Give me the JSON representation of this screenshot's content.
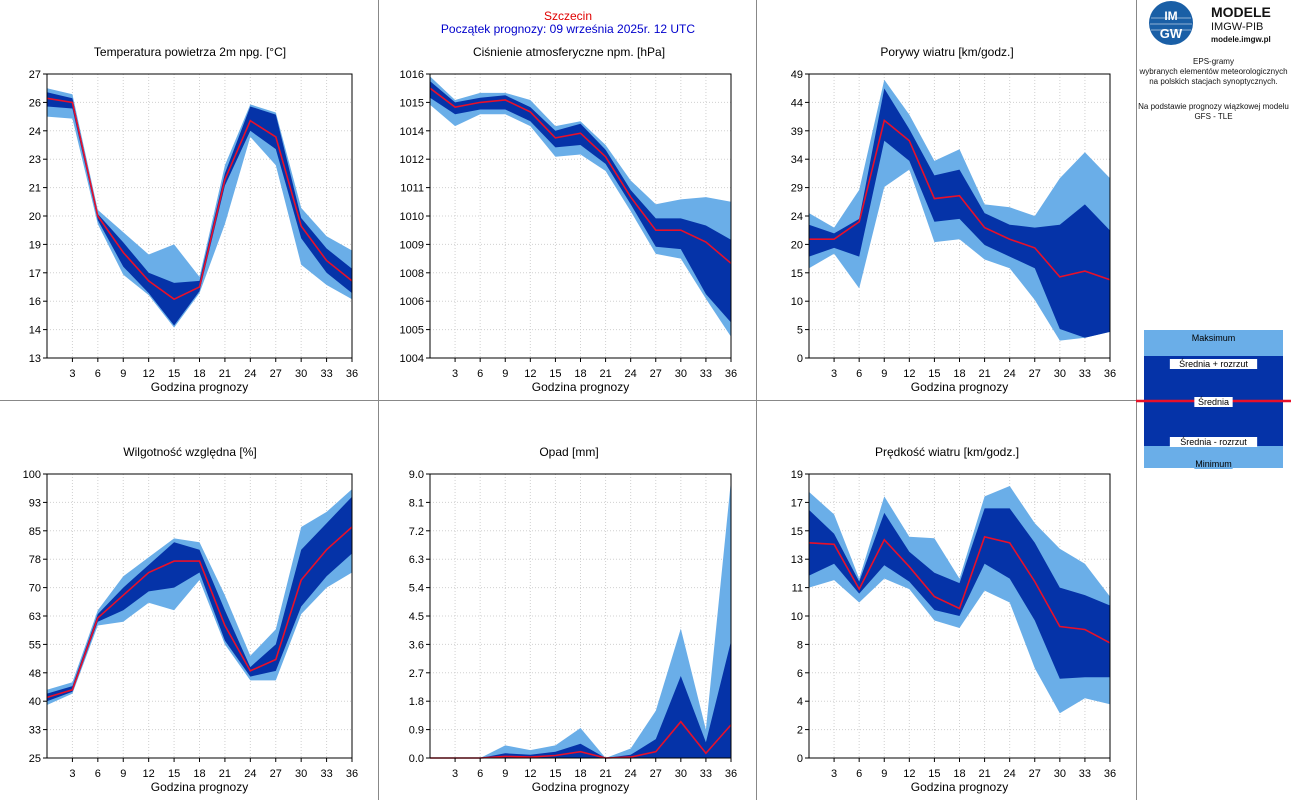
{
  "header": {
    "station": "Szczecin",
    "subtitle": "Początek prognozy: 09 września 2025r. 12 UTC"
  },
  "sidebar": {
    "logo_mark": "IMGW",
    "logo_title": "MODELE",
    "logo_subtitle": "IMGW-PIB",
    "logo_url": "modele.imgw.pl",
    "description": [
      "EPS-gramy",
      "wybranych elementów meteorologicznych",
      "na polskich stacjach  synoptycznych."
    ],
    "model_note": [
      "Na podstawie prognozy wiązkowej modelu",
      "GFS - TLE"
    ],
    "legend": {
      "max": "Maksimum",
      "mean_plus": "Średnia + rozrzut",
      "mean": "Średnia",
      "mean_minus": "Średnia - rozrzut",
      "min": "Minimum"
    }
  },
  "colors": {
    "range_light": "#6aaee8",
    "range_dark": "#0533a8",
    "mean": "#e8102a",
    "grid": "#d0d0d0"
  },
  "chart_data": [
    {
      "type": "area",
      "title": "Temperatura powietrza 2m npg. [°C]",
      "xlabel": "Godzina prognozy",
      "x": [
        0,
        3,
        6,
        9,
        12,
        15,
        18,
        21,
        24,
        27,
        30,
        33,
        36
      ],
      "xticks": [
        "3",
        "6",
        "9",
        "12",
        "15",
        "18",
        "21",
        "24",
        "27",
        "30",
        "33",
        "36"
      ],
      "yticks": [
        "13",
        "14",
        "16",
        "17",
        "19",
        "20",
        "21",
        "23",
        "24",
        "26",
        "27"
      ],
      "ylim": [
        13,
        27
      ],
      "series": {
        "max": [
          26.3,
          26.0,
          20.3,
          19.2,
          18.1,
          18.6,
          17.0,
          22.5,
          25.5,
          25.1,
          20.4,
          19.0,
          18.3
        ],
        "plus": [
          26.1,
          25.8,
          20.1,
          18.7,
          17.2,
          16.7,
          16.8,
          22.1,
          25.4,
          25.0,
          19.9,
          18.4,
          17.4
        ],
        "mean": [
          25.8,
          25.6,
          20.0,
          18.2,
          16.8,
          15.9,
          16.5,
          21.8,
          24.7,
          23.9,
          19.5,
          17.8,
          16.8
        ],
        "minus": [
          25.4,
          25.3,
          19.8,
          17.5,
          16.2,
          14.6,
          16.3,
          21.5,
          24.2,
          23.3,
          18.9,
          17.2,
          16.2
        ],
        "min": [
          24.9,
          24.8,
          19.6,
          17.1,
          16.1,
          14.5,
          16.2,
          19.6,
          23.9,
          22.5,
          17.6,
          16.6,
          15.9
        ]
      }
    },
    {
      "type": "area",
      "title": "Ciśnienie atmosferyczne npm. [hPa]",
      "xlabel": "Godzina prognozy",
      "x": [
        0,
        3,
        6,
        9,
        12,
        15,
        18,
        21,
        24,
        27,
        30,
        33,
        36
      ],
      "xticks": [
        "3",
        "6",
        "9",
        "12",
        "15",
        "18",
        "21",
        "24",
        "27",
        "30",
        "33",
        "36"
      ],
      "yticks": [
        "1004",
        "1005",
        "1006",
        "1008",
        "1009",
        "1010",
        "1011",
        "1012",
        "1014",
        "1015",
        "1016"
      ],
      "ylim": [
        1004,
        1016
      ],
      "series": {
        "max": [
          1015.9,
          1014.9,
          1015.2,
          1015.2,
          1014.9,
          1013.8,
          1014.0,
          1013.0,
          1011.5,
          1010.5,
          1010.7,
          1010.8,
          1010.6
        ],
        "plus": [
          1015.7,
          1014.8,
          1015.0,
          1015.1,
          1014.6,
          1013.6,
          1013.9,
          1012.8,
          1011.1,
          1009.9,
          1009.9,
          1009.6,
          1009.0
        ],
        "mean": [
          1015.4,
          1014.6,
          1014.8,
          1014.9,
          1014.4,
          1013.3,
          1013.5,
          1012.5,
          1010.8,
          1009.4,
          1009.4,
          1008.9,
          1008.0
        ],
        "minus": [
          1015.0,
          1014.3,
          1014.5,
          1014.5,
          1014.0,
          1012.9,
          1013.0,
          1012.2,
          1010.5,
          1008.7,
          1008.6,
          1006.7,
          1005.5
        ],
        "min": [
          1014.7,
          1013.8,
          1014.3,
          1014.3,
          1013.8,
          1012.5,
          1012.6,
          1011.9,
          1010.2,
          1008.4,
          1008.2,
          1006.5,
          1004.9
        ]
      }
    },
    {
      "type": "area",
      "title": "Porywy wiatru [km/godz.]",
      "xlabel": "Godzina prognozy",
      "x": [
        0,
        3,
        6,
        9,
        12,
        15,
        18,
        21,
        24,
        27,
        30,
        33,
        36
      ],
      "xticks": [
        "3",
        "6",
        "9",
        "12",
        "15",
        "18",
        "21",
        "24",
        "27",
        "30",
        "33",
        "36"
      ],
      "yticks": [
        "0",
        "5",
        "10",
        "15",
        "20",
        "24",
        "29",
        "34",
        "39",
        "44",
        "49"
      ],
      "ylim": [
        0,
        49
      ],
      "series": {
        "max": [
          25.0,
          22.5,
          29.0,
          48.0,
          42.0,
          34.0,
          36.0,
          26.5,
          26.0,
          24.5,
          31.0,
          35.5,
          31.0
        ],
        "plus": [
          23.0,
          21.5,
          24.0,
          46.5,
          39.5,
          31.5,
          32.5,
          25.0,
          23.0,
          22.5,
          23.0,
          26.5,
          22.0
        ],
        "mean": [
          20.5,
          20.5,
          23.5,
          41.0,
          37.5,
          27.5,
          28.0,
          22.5,
          20.5,
          19.0,
          14.0,
          15.0,
          13.5
        ],
        "minus": [
          17.5,
          19.0,
          17.5,
          37.5,
          34.0,
          23.5,
          24.0,
          19.5,
          17.5,
          15.5,
          5.0,
          3.5,
          4.5
        ],
        "min": [
          15.5,
          18.0,
          12.0,
          29.5,
          32.5,
          20.0,
          20.5,
          17.0,
          15.5,
          10.0,
          3.0,
          3.5,
          4.5
        ]
      }
    },
    {
      "type": "area",
      "title": "Wilgotność względna [%]",
      "xlabel": "Godzina prognozy",
      "x": [
        0,
        3,
        6,
        9,
        12,
        15,
        18,
        21,
        24,
        27,
        30,
        33,
        36
      ],
      "xticks": [
        "3",
        "6",
        "9",
        "12",
        "15",
        "18",
        "21",
        "24",
        "27",
        "30",
        "33",
        "36"
      ],
      "yticks": [
        "25",
        "33",
        "40",
        "48",
        "55",
        "63",
        "70",
        "78",
        "85",
        "93",
        "100"
      ],
      "ylim": [
        25,
        100
      ],
      "series": {
        "max": [
          43.0,
          45.0,
          64.0,
          73.0,
          78.0,
          83.0,
          82.0,
          68.0,
          52.0,
          59.0,
          86.0,
          90.0,
          96.0
        ],
        "plus": [
          42.0,
          44.0,
          63.0,
          70.0,
          76.0,
          82.0,
          80.0,
          64.0,
          49.0,
          55.0,
          80.0,
          87.0,
          94.0
        ],
        "mean": [
          41.0,
          43.0,
          62.0,
          68.0,
          74.0,
          77.0,
          77.0,
          60.0,
          48.0,
          51.0,
          72.0,
          80.0,
          86.0
        ],
        "minus": [
          40.0,
          42.5,
          61.0,
          64.0,
          69.0,
          70.0,
          74.0,
          56.0,
          46.5,
          48.0,
          65.0,
          73.0,
          79.0
        ],
        "min": [
          39.0,
          42.0,
          60.0,
          61.0,
          66.0,
          64.0,
          72.0,
          55.0,
          45.5,
          45.5,
          63.0,
          70.0,
          74.0
        ]
      }
    },
    {
      "type": "area",
      "title": "Opad [mm]",
      "xlabel": "Godzina prognozy",
      "x": [
        0,
        3,
        6,
        9,
        12,
        15,
        18,
        21,
        24,
        27,
        30,
        33,
        36
      ],
      "xticks": [
        "3",
        "6",
        "9",
        "12",
        "15",
        "18",
        "21",
        "24",
        "27",
        "30",
        "33",
        "36"
      ],
      "yticks": [
        "0.0",
        "0.9",
        "1.8",
        "2.7",
        "3.6",
        "4.5",
        "5.4",
        "6.3",
        "7.2",
        "8.1",
        "9.0"
      ],
      "ylim": [
        0,
        9
      ],
      "series": {
        "max": [
          0.0,
          0.0,
          0.0,
          0.4,
          0.25,
          0.4,
          0.95,
          0.0,
          0.3,
          1.5,
          4.1,
          0.9,
          8.8
        ],
        "plus": [
          0.0,
          0.0,
          0.0,
          0.15,
          0.1,
          0.2,
          0.45,
          0.0,
          0.1,
          0.6,
          2.6,
          0.5,
          3.7
        ],
        "mean": [
          0.0,
          0.0,
          0.0,
          0.05,
          0.03,
          0.08,
          0.2,
          0.0,
          0.03,
          0.2,
          1.15,
          0.15,
          1.05
        ],
        "minus": [
          0.0,
          0.0,
          0.0,
          0.0,
          0.0,
          0.0,
          0.0,
          0.0,
          0.0,
          0.0,
          0.0,
          0.0,
          0.0
        ],
        "min": [
          0.0,
          0.0,
          0.0,
          0.0,
          0.0,
          0.0,
          0.0,
          0.0,
          0.0,
          0.0,
          0.0,
          0.0,
          0.0
        ]
      }
    },
    {
      "type": "area",
      "title": "Prędkość wiatru [km/godz.]",
      "xlabel": "Godzina prognozy",
      "x": [
        0,
        3,
        6,
        9,
        12,
        15,
        18,
        21,
        24,
        27,
        30,
        33,
        36
      ],
      "xticks": [
        "3",
        "6",
        "9",
        "12",
        "15",
        "18",
        "21",
        "24",
        "27",
        "30",
        "33",
        "36"
      ],
      "yticks": [
        "0",
        "2",
        "4",
        "6",
        "8",
        "10",
        "11",
        "13",
        "15",
        "17",
        "19"
      ],
      "ylim": [
        0,
        19
      ],
      "series": {
        "max": [
          17.8,
          16.3,
          12.0,
          17.5,
          14.8,
          14.7,
          12.0,
          17.5,
          18.2,
          15.7,
          14.0,
          13.0,
          10.8
        ],
        "plus": [
          16.6,
          15.0,
          11.8,
          16.4,
          13.8,
          12.4,
          11.7,
          16.7,
          16.7,
          14.4,
          11.4,
          10.9,
          10.2
        ],
        "mean": [
          14.4,
          14.3,
          11.3,
          14.6,
          12.8,
          10.8,
          10.0,
          14.8,
          14.4,
          11.8,
          8.8,
          8.6,
          7.7
        ],
        "minus": [
          12.2,
          13.0,
          11.0,
          12.9,
          11.8,
          9.9,
          9.5,
          13.0,
          12.0,
          9.2,
          5.3,
          5.4,
          5.4
        ],
        "min": [
          11.4,
          11.9,
          10.4,
          12.0,
          11.3,
          9.2,
          8.7,
          11.2,
          10.4,
          6.0,
          3.0,
          4.0,
          3.6
        ]
      }
    }
  ]
}
